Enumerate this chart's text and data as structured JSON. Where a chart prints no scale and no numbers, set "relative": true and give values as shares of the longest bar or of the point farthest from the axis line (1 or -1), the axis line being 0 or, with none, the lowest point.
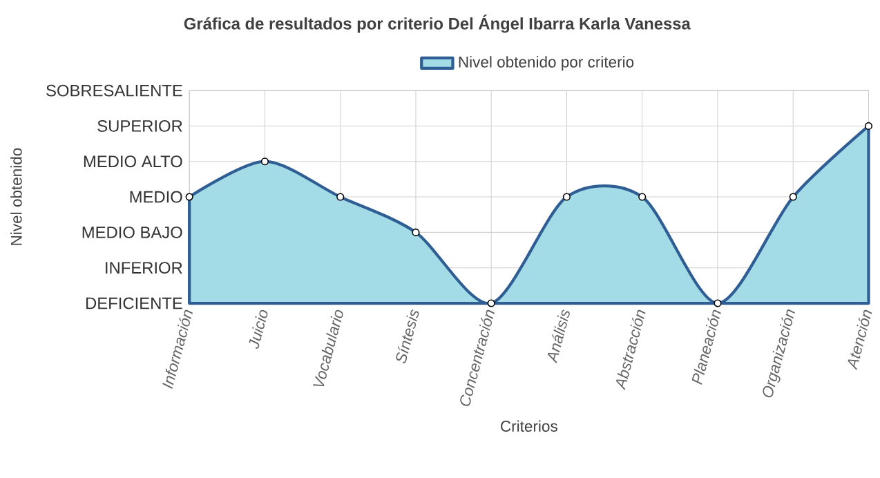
{
  "chart_data": {
    "type": "area",
    "title": "Gráfica de resultados por criterio Del Ángel Ibarra Karla Vanessa",
    "xlabel": "Criterios",
    "categories": [
      "Información",
      "Juicio",
      "Vocabulario",
      "Síntesis",
      "Concentración",
      "Análisis",
      "Abstracción",
      "Planeación",
      "Organización",
      "Atención"
    ],
    "series": [
      {
        "name": "Nivel obtenido por criterio",
        "color": "#2f5e94",
        "values": [
          0.6,
          0.8,
          0.6,
          0.4,
          0,
          0.6,
          0.6,
          0,
          0.6,
          1
        ]
      }
    ],
    "relative": true,
    "annotations": [
      "Nivel obtenido",
      "DEFICIENTE",
      "INFERIOR",
      "MEDIO BAJO",
      "MEDIO",
      "MEDIO ALTO",
      "SUPERIOR",
      "SOBRESALIENTE"
    ],
    "grid": true,
    "legend": "top",
    "marker": "circle",
    "line_style": "solid"
  }
}
